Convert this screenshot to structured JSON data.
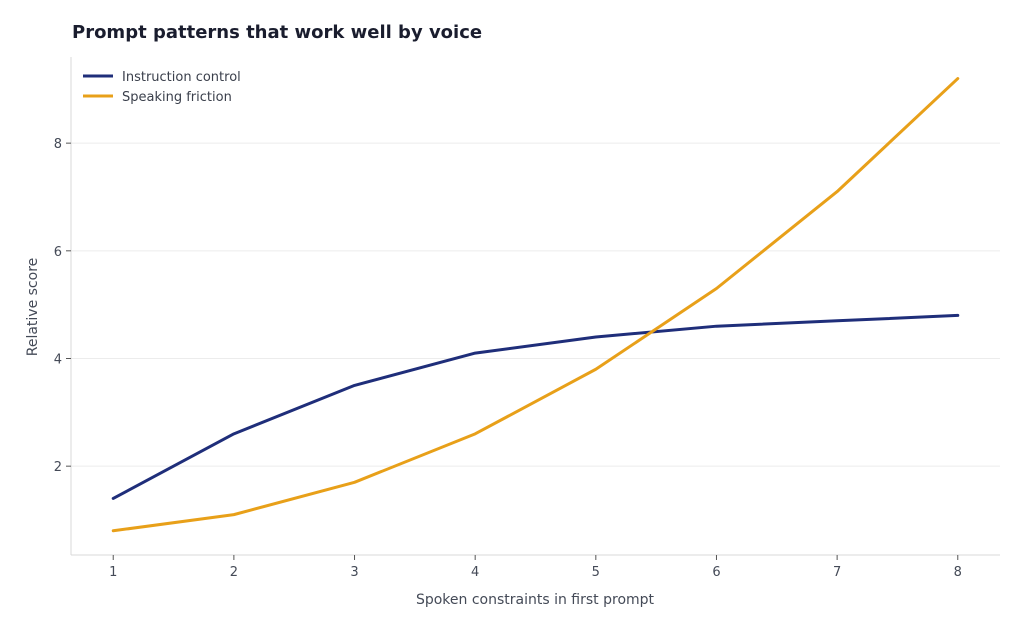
{
  "chart_data": {
    "type": "line",
    "title": "Prompt patterns that work well by voice",
    "xlabel": "Spoken constraints in first prompt",
    "ylabel": "Relative score",
    "x": [
      1,
      2,
      3,
      4,
      5,
      6,
      7,
      8
    ],
    "series": [
      {
        "name": "Instruction control",
        "color": "#1f2e7a",
        "values": [
          1.4,
          2.6,
          3.5,
          4.1,
          4.4,
          4.6,
          4.7,
          4.8
        ]
      },
      {
        "name": "Speaking friction",
        "color": "#e8a019",
        "values": [
          0.8,
          1.1,
          1.7,
          2.6,
          3.8,
          5.3,
          7.1,
          9.2
        ]
      }
    ],
    "xlim": [
      0.65,
      8.35
    ],
    "ylim": [
      0.35,
      9.6
    ],
    "xticks": [
      1,
      2,
      3,
      4,
      5,
      6,
      7,
      8
    ],
    "yticks": [
      2,
      4,
      6,
      8
    ],
    "grid": true,
    "legend": "top-left"
  }
}
